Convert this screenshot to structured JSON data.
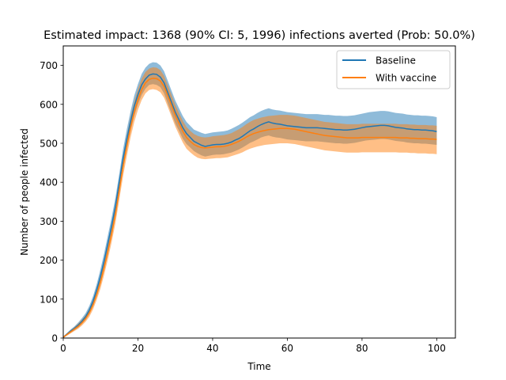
{
  "chart_data": {
    "type": "line",
    "title": "Estimated impact: 1368 (90% CI: 5, 1996) infections averted (Prob: 50.0%)",
    "xlabel": "Time",
    "ylabel": "Number of people infected",
    "xlim": [
      0,
      105
    ],
    "ylim": [
      0,
      750
    ],
    "xticks": [
      0,
      20,
      40,
      60,
      80,
      100
    ],
    "yticks": [
      0,
      100,
      200,
      300,
      400,
      500,
      600,
      700
    ],
    "grid": false,
    "legend_position": "top-right",
    "x": [
      0,
      1,
      2,
      3,
      4,
      5,
      6,
      7,
      8,
      9,
      10,
      11,
      12,
      13,
      14,
      15,
      16,
      17,
      18,
      19,
      20,
      21,
      22,
      23,
      24,
      25,
      26,
      27,
      28,
      29,
      30,
      31,
      32,
      33,
      34,
      35,
      36,
      37,
      38,
      39,
      40,
      41,
      42,
      43,
      44,
      45,
      46,
      47,
      48,
      49,
      50,
      51,
      52,
      53,
      54,
      55,
      56,
      57,
      58,
      59,
      60,
      61,
      62,
      63,
      64,
      65,
      66,
      67,
      68,
      69,
      70,
      71,
      72,
      73,
      74,
      75,
      76,
      77,
      78,
      79,
      80,
      81,
      82,
      83,
      84,
      85,
      86,
      87,
      88,
      89,
      90,
      91,
      92,
      93,
      94,
      95,
      96,
      97,
      98,
      99,
      100
    ],
    "series": [
      {
        "name": "Baseline",
        "color": "#1f77b4",
        "values": [
          2,
          10,
          18,
          25,
          33,
          43,
          55,
          72,
          95,
          125,
          160,
          200,
          245,
          290,
          340,
          400,
          460,
          510,
          555,
          595,
          625,
          650,
          665,
          675,
          678,
          677,
          670,
          655,
          630,
          605,
          580,
          560,
          540,
          525,
          515,
          505,
          500,
          495,
          492,
          494,
          496,
          497,
          497,
          498,
          500,
          503,
          508,
          512,
          518,
          525,
          532,
          537,
          543,
          548,
          552,
          555,
          552,
          550,
          549,
          547,
          545,
          544,
          543,
          542,
          541,
          540,
          540,
          540,
          540,
          539,
          538,
          537,
          536,
          535,
          535,
          534,
          534,
          535,
          536,
          538,
          540,
          542,
          543,
          544,
          545,
          546,
          546,
          545,
          543,
          541,
          540,
          539,
          537,
          536,
          535,
          535,
          534,
          534,
          533,
          532,
          530
        ],
        "upper": [
          4,
          13,
          22,
          30,
          40,
          51,
          64,
          83,
          108,
          140,
          178,
          220,
          266,
          312,
          362,
          422,
          484,
          535,
          581,
          622,
          652,
          678,
          694,
          704,
          708,
          707,
          700,
          685,
          660,
          635,
          610,
          590,
          570,
          555,
          545,
          535,
          531,
          527,
          524,
          526,
          528,
          529,
          530,
          531,
          533,
          537,
          542,
          547,
          553,
          560,
          567,
          572,
          578,
          583,
          587,
          590,
          587,
          585,
          584,
          582,
          580,
          579,
          578,
          577,
          576,
          575,
          575,
          575,
          575,
          574,
          573,
          573,
          572,
          571,
          571,
          570,
          570,
          571,
          572,
          574,
          576,
          578,
          580,
          581,
          582,
          583,
          583,
          582,
          580,
          578,
          577,
          576,
          574,
          573,
          572,
          572,
          571,
          571,
          570,
          569,
          567
        ],
        "lower": [
          0,
          7,
          14,
          20,
          27,
          36,
          47,
          62,
          84,
          112,
          144,
          182,
          226,
          270,
          320,
          380,
          438,
          487,
          531,
          570,
          600,
          624,
          640,
          650,
          652,
          650,
          644,
          628,
          602,
          576,
          551,
          532,
          512,
          498,
          489,
          480,
          474,
          469,
          466,
          468,
          470,
          471,
          471,
          472,
          474,
          476,
          480,
          484,
          489,
          495,
          501,
          505,
          510,
          515,
          518,
          520,
          517,
          515,
          514,
          512,
          510,
          509,
          508,
          507,
          506,
          505,
          505,
          505,
          505,
          504,
          503,
          502,
          501,
          500,
          500,
          499,
          499,
          500,
          501,
          503,
          505,
          507,
          508,
          509,
          510,
          511,
          511,
          510,
          508,
          506,
          505,
          504,
          502,
          501,
          500,
          500,
          499,
          499,
          498,
          497,
          496
        ]
      },
      {
        "name": "With vaccine",
        "color": "#ff7f0e",
        "values": [
          2,
          9,
          16,
          23,
          30,
          39,
          50,
          65,
          86,
          113,
          145,
          183,
          225,
          270,
          320,
          380,
          440,
          492,
          540,
          580,
          612,
          638,
          655,
          664,
          667,
          666,
          660,
          646,
          622,
          597,
          572,
          551,
          531,
          515,
          505,
          497,
          492,
          489,
          488,
          489,
          490,
          491,
          491,
          492,
          494,
          497,
          501,
          505,
          510,
          516,
          521,
          525,
          528,
          531,
          533,
          535,
          536,
          537,
          538,
          538,
          538,
          537,
          536,
          534,
          532,
          530,
          528,
          526,
          524,
          522,
          520,
          519,
          518,
          517,
          516,
          515,
          514,
          514,
          514,
          514,
          515,
          515,
          515,
          515,
          515,
          515,
          515,
          515,
          515,
          515,
          514,
          514,
          514,
          513,
          513,
          512,
          512,
          512,
          511,
          511,
          510
        ],
        "upper": [
          4,
          12,
          20,
          28,
          37,
          47,
          59,
          76,
          99,
          128,
          163,
          203,
          247,
          293,
          344,
          405,
          466,
          518,
          566,
          606,
          639,
          666,
          683,
          692,
          695,
          694,
          688,
          673,
          649,
          624,
          599,
          578,
          558,
          542,
          532,
          524,
          519,
          516,
          515,
          516,
          518,
          519,
          520,
          521,
          523,
          526,
          531,
          536,
          542,
          549,
          555,
          560,
          563,
          566,
          568,
          570,
          571,
          572,
          573,
          573,
          573,
          572,
          571,
          569,
          567,
          565,
          563,
          561,
          559,
          557,
          555,
          554,
          553,
          552,
          551,
          550,
          549,
          549,
          549,
          549,
          550,
          550,
          550,
          550,
          550,
          550,
          550,
          550,
          550,
          550,
          549,
          549,
          549,
          548,
          548,
          547,
          547,
          547,
          546,
          546,
          545
        ],
        "lower": [
          0,
          6,
          12,
          18,
          24,
          32,
          42,
          55,
          74,
          99,
          128,
          164,
          204,
          248,
          296,
          355,
          414,
          466,
          514,
          554,
          586,
          611,
          628,
          637,
          639,
          637,
          631,
          617,
          593,
          568,
          543,
          522,
          502,
          486,
          477,
          469,
          463,
          460,
          459,
          460,
          461,
          462,
          462,
          463,
          464,
          467,
          470,
          473,
          477,
          482,
          486,
          489,
          492,
          494,
          496,
          497,
          498,
          499,
          500,
          500,
          500,
          499,
          498,
          496,
          494,
          492,
          490,
          488,
          486,
          484,
          482,
          481,
          480,
          479,
          478,
          477,
          476,
          476,
          476,
          476,
          477,
          477,
          477,
          477,
          477,
          477,
          477,
          477,
          477,
          477,
          476,
          476,
          476,
          475,
          475,
          474,
          474,
          474,
          473,
          473,
          472
        ]
      }
    ]
  }
}
